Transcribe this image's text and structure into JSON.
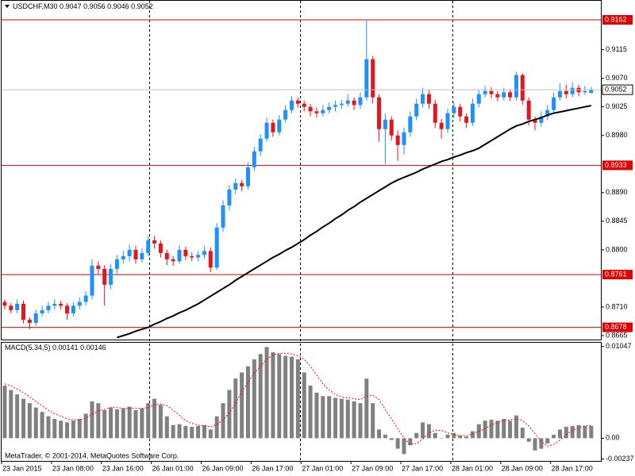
{
  "chart_data": [
    {
      "type": "candlestick",
      "title": "USDCHF,M30",
      "categories": [
        "23 Jan 2015",
        null,
        null,
        null,
        null,
        null,
        null,
        null,
        "23 Jan 08:00",
        null,
        null,
        null,
        null,
        null,
        null,
        null,
        "23 Jan 16:00",
        null,
        null,
        null,
        null,
        null,
        null,
        null,
        "26 Jan 01:00",
        null,
        null,
        null,
        null,
        null,
        null,
        null,
        "26 Jan 09:00",
        null,
        null,
        null,
        null,
        null,
        null,
        null,
        "26 Jan 17:00",
        null,
        null,
        null,
        null,
        null,
        null,
        null,
        "27 Jan 01:00",
        null,
        null,
        null,
        null,
        null,
        null,
        null,
        "27 Jan 09:00",
        null,
        null,
        null,
        null,
        null,
        null,
        null,
        "27 Jan 17:00",
        null,
        null,
        null,
        null,
        null,
        null,
        null,
        "28 Jan 01:00",
        null,
        null,
        null,
        null,
        null,
        null,
        null,
        "28 Jan 09:00",
        null,
        null,
        null,
        null,
        null,
        null,
        null,
        "28 Jan 17:00",
        null,
        null,
        null,
        null,
        null,
        null
      ],
      "candles": [
        [
          0.8718,
          0.8722,
          0.8706,
          0.8712
        ],
        [
          0.8712,
          0.8716,
          0.87,
          0.8705
        ],
        [
          0.8705,
          0.8722,
          0.87,
          0.8715
        ],
        [
          0.8715,
          0.872,
          0.8684,
          0.869
        ],
        [
          0.869,
          0.8694,
          0.8675,
          0.8685
        ],
        [
          0.8685,
          0.8706,
          0.868,
          0.87
        ],
        [
          0.87,
          0.8712,
          0.8695,
          0.8705
        ],
        [
          0.8705,
          0.8718,
          0.87,
          0.8712
        ],
        [
          0.8712,
          0.8722,
          0.8706,
          0.8715
        ],
        [
          0.8715,
          0.872,
          0.8706,
          0.8712
        ],
        [
          0.8712,
          0.8716,
          0.869,
          0.87
        ],
        [
          0.87,
          0.8718,
          0.8695,
          0.8712
        ],
        [
          0.8712,
          0.8725,
          0.8706,
          0.8718
        ],
        [
          0.8718,
          0.8735,
          0.8712,
          0.8728
        ],
        [
          0.8728,
          0.8785,
          0.8722,
          0.8775
        ],
        [
          0.8775,
          0.8782,
          0.8762,
          0.877
        ],
        [
          0.877,
          0.8776,
          0.8712,
          0.8745
        ],
        [
          0.8745,
          0.8778,
          0.8738,
          0.877
        ],
        [
          0.877,
          0.8792,
          0.8762,
          0.8785
        ],
        [
          0.8785,
          0.8798,
          0.8778,
          0.879
        ],
        [
          0.879,
          0.8808,
          0.8782,
          0.88
        ],
        [
          0.88,
          0.8806,
          0.8778,
          0.8785
        ],
        [
          0.8785,
          0.8802,
          0.878,
          0.8795
        ],
        [
          0.8795,
          0.8822,
          0.879,
          0.8815
        ],
        [
          0.8815,
          0.8822,
          0.8802,
          0.881
        ],
        [
          0.881,
          0.8815,
          0.8788,
          0.8795
        ],
        [
          0.8795,
          0.88,
          0.8776,
          0.8785
        ],
        [
          0.8785,
          0.879,
          0.8775,
          0.8782
        ],
        [
          0.8782,
          0.8808,
          0.8778,
          0.88
        ],
        [
          0.88,
          0.8805,
          0.8784,
          0.879
        ],
        [
          0.879,
          0.8796,
          0.8782,
          0.8788
        ],
        [
          0.8788,
          0.8798,
          0.8782,
          0.8792
        ],
        [
          0.8792,
          0.8806,
          0.8786,
          0.8798
        ],
        [
          0.8798,
          0.8804,
          0.8765,
          0.8772
        ],
        [
          0.8772,
          0.8842,
          0.8768,
          0.8835
        ],
        [
          0.8835,
          0.8878,
          0.8828,
          0.887
        ],
        [
          0.887,
          0.8902,
          0.8862,
          0.8895
        ],
        [
          0.8895,
          0.8912,
          0.8888,
          0.8905
        ],
        [
          0.8905,
          0.891,
          0.8892,
          0.89
        ],
        [
          0.89,
          0.8938,
          0.8895,
          0.893
        ],
        [
          0.893,
          0.8962,
          0.8924,
          0.8955
        ],
        [
          0.8955,
          0.8982,
          0.8948,
          0.8975
        ],
        [
          0.8975,
          0.9008,
          0.897,
          0.9
        ],
        [
          0.9,
          0.9005,
          0.8978,
          0.8985
        ],
        [
          0.8985,
          0.9012,
          0.898,
          0.9005
        ],
        [
          0.9005,
          0.9028,
          0.9,
          0.902
        ],
        [
          0.902,
          0.9042,
          0.9015,
          0.9035
        ],
        [
          0.9035,
          0.904,
          0.9024,
          0.903
        ],
        [
          0.903,
          0.9035,
          0.9018,
          0.9025
        ],
        [
          0.9025,
          0.903,
          0.901,
          0.9018
        ],
        [
          0.9018,
          0.9024,
          0.9008,
          0.9015
        ],
        [
          0.9015,
          0.9028,
          0.901,
          0.902
        ],
        [
          0.902,
          0.9032,
          0.9015,
          0.9025
        ],
        [
          0.9025,
          0.9035,
          0.9018,
          0.9028
        ],
        [
          0.9028,
          0.9036,
          0.9022,
          0.903
        ],
        [
          0.903,
          0.9045,
          0.9025,
          0.9035
        ],
        [
          0.9035,
          0.904,
          0.902,
          0.9028
        ],
        [
          0.9028,
          0.9048,
          0.9022,
          0.904
        ],
        [
          0.904,
          0.9162,
          0.9035,
          0.91
        ],
        [
          0.91,
          0.9105,
          0.903,
          0.904
        ],
        [
          0.904,
          0.9045,
          0.897,
          0.899
        ],
        [
          0.899,
          0.9015,
          0.8935,
          0.9005
        ],
        [
          0.9005,
          0.901,
          0.8972,
          0.898
        ],
        [
          0.898,
          0.8988,
          0.894,
          0.8965
        ],
        [
          0.8965,
          0.8992,
          0.895,
          0.8985
        ],
        [
          0.8985,
          0.9018,
          0.8978,
          0.901
        ],
        [
          0.901,
          0.9038,
          0.9004,
          0.903
        ],
        [
          0.903,
          0.9055,
          0.9024,
          0.9045
        ],
        [
          0.9045,
          0.9052,
          0.9022,
          0.903
        ],
        [
          0.903,
          0.9036,
          0.8992,
          0.9
        ],
        [
          0.9,
          0.9006,
          0.8975,
          0.899
        ],
        [
          0.899,
          0.9022,
          0.8984,
          0.9015
        ],
        [
          0.9015,
          0.9032,
          0.9008,
          0.9025
        ],
        [
          0.9025,
          0.903,
          0.9002,
          0.901
        ],
        [
          0.901,
          0.9015,
          0.8992,
          0.9
        ],
        [
          0.9,
          0.9038,
          0.8995,
          0.903
        ],
        [
          0.903,
          0.9052,
          0.9024,
          0.9045
        ],
        [
          0.9045,
          0.9058,
          0.904,
          0.905
        ],
        [
          0.905,
          0.9056,
          0.9038,
          0.9045
        ],
        [
          0.9045,
          0.905,
          0.9034,
          0.904
        ],
        [
          0.904,
          0.9055,
          0.9035,
          0.9048
        ],
        [
          0.9048,
          0.9052,
          0.9034,
          0.904
        ],
        [
          0.904,
          0.908,
          0.9035,
          0.9075
        ],
        [
          0.9075,
          0.9078,
          0.9028,
          0.9035
        ],
        [
          0.9035,
          0.904,
          0.8996,
          0.9005
        ],
        [
          0.9005,
          0.901,
          0.8988,
          0.9
        ],
        [
          0.9,
          0.9018,
          0.8994,
          0.901
        ],
        [
          0.901,
          0.9028,
          0.9004,
          0.902
        ],
        [
          0.902,
          0.9048,
          0.9014,
          0.904
        ],
        [
          0.904,
          0.9062,
          0.9035,
          0.905
        ],
        [
          0.905,
          0.906,
          0.9038,
          0.9045
        ],
        [
          0.9045,
          0.9064,
          0.904,
          0.9055
        ],
        [
          0.9055,
          0.906,
          0.9042,
          0.9048
        ],
        [
          0.9048,
          0.9058,
          0.9044,
          0.905
        ],
        [
          0.9047,
          0.9056,
          0.9046,
          0.9052
        ]
      ],
      "up_color": "#1e90ff",
      "down_color": "#e8141b",
      "ma": {
        "color": "#000000",
        "values": [
          null,
          null,
          null,
          null,
          null,
          null,
          null,
          null,
          null,
          null,
          null,
          null,
          null,
          null,
          null,
          null,
          null,
          null,
          0.8662,
          0.8665,
          0.8668,
          0.8672,
          0.8675,
          0.8678,
          0.8683,
          0.8687,
          0.8692,
          0.8696,
          0.8701,
          0.8705,
          0.871,
          0.8715,
          0.8721,
          0.8727,
          0.8733,
          0.8739,
          0.8745,
          0.8752,
          0.8758,
          0.8764,
          0.877,
          0.8776,
          0.8782,
          0.8788,
          0.8793,
          0.8799,
          0.8804,
          0.881,
          0.8816,
          0.8823,
          0.8829,
          0.8836,
          0.8842,
          0.8849,
          0.8855,
          0.8862,
          0.8868,
          0.8875,
          0.8881,
          0.8887,
          0.8893,
          0.8899,
          0.8905,
          0.891,
          0.8914,
          0.8918,
          0.8922,
          0.8927,
          0.8931,
          0.8935,
          0.8939,
          0.8942,
          0.8946,
          0.8949,
          0.8953,
          0.8956,
          0.896,
          0.8966,
          0.8972,
          0.8978,
          0.8984,
          0.899,
          0.8995,
          0.8998,
          0.9002,
          0.9005,
          0.9008,
          0.9012,
          0.9015,
          0.9017,
          0.9019,
          0.9021,
          0.9023,
          0.9025,
          0.9027
        ]
      },
      "levels": [
        0.9162,
        0.8933,
        0.8761,
        0.8678
      ],
      "level_color": "#e00000",
      "ylim": [
        0.866,
        0.9192
      ],
      "yticks": [
        0.9115,
        {
          "value": 0.907,
          "label": "0.9070"
        },
        0.9025,
        {
          "value": 0.898,
          "label": "0.8980"
        },
        {
          "value": 0.889,
          "label": "0.8890"
        },
        0.8845,
        {
          "value": 0.88,
          "label": "0.8800"
        },
        {
          "value": 0.871,
          "label": "0.8710"
        },
        0.8665
      ]
    },
    {
      "type": "macd",
      "title": "MACD(5,34,5)",
      "color": "#808080",
      "signal_color": "#ff0000",
      "values": [
        0.006,
        0.0055,
        0.005,
        0.0045,
        0.004,
        0.0035,
        0.003,
        0.0025,
        0.0022,
        0.002,
        0.0018,
        0.002,
        0.0022,
        0.0028,
        0.0042,
        0.004,
        0.0032,
        0.0035,
        0.0033,
        0.0034,
        0.0036,
        0.0032,
        0.0034,
        0.004,
        0.0045,
        0.0038,
        0.0025,
        0.0015,
        0.0016,
        0.0014,
        0.0013,
        0.0014,
        0.0015,
        0.001,
        0.0025,
        0.004,
        0.0055,
        0.0068,
        0.0075,
        0.0082,
        0.009,
        0.0096,
        0.0104,
        0.0098,
        0.0096,
        0.0094,
        0.0093,
        0.009,
        0.0075,
        0.006,
        0.0052,
        0.0048,
        0.0048,
        0.0046,
        0.0045,
        0.0044,
        0.0042,
        0.004,
        0.0068,
        0.004,
        0.001,
        0.0004,
        -0.0002,
        -0.0012,
        -0.0018,
        -0.0008,
        0.0006,
        0.0018,
        0.0016,
        0.0006,
        0.0,
        0.0004,
        0.0006,
        0.0003,
        0.0002,
        0.0008,
        0.0016,
        0.002,
        0.0021,
        0.002,
        0.0022,
        0.002,
        0.0026,
        0.0012,
        -0.0004,
        -0.0014,
        -0.0012,
        -0.0006,
        0.0004,
        0.001,
        0.0013,
        0.0014,
        0.0015,
        0.0014,
        0.00141
      ],
      "signal": [
        0.0062,
        0.006,
        0.0056,
        0.0052,
        0.0047,
        0.0042,
        0.0037,
        0.0032,
        0.0028,
        0.0025,
        0.0022,
        0.0021,
        0.0021,
        0.0023,
        0.0027,
        0.0031,
        0.0033,
        0.0035,
        0.0035,
        0.0034,
        0.0034,
        0.0034,
        0.0034,
        0.0035,
        0.0038,
        0.0039,
        0.0037,
        0.0032,
        0.0026,
        0.002,
        0.0017,
        0.0015,
        0.0014,
        0.0013,
        0.0016,
        0.0021,
        0.0029,
        0.004,
        0.0053,
        0.0064,
        0.0074,
        0.0082,
        0.009,
        0.0095,
        0.0097,
        0.0097,
        0.0096,
        0.0094,
        0.009,
        0.0082,
        0.0072,
        0.0062,
        0.0055,
        0.005,
        0.0047,
        0.0046,
        0.0045,
        0.0044,
        0.0048,
        0.0049,
        0.0044,
        0.0033,
        0.0022,
        0.0011,
        0.0,
        -0.0007,
        -0.0006,
        -0.0001,
        0.0006,
        0.0009,
        0.0009,
        0.0006,
        0.0004,
        0.0003,
        0.0003,
        0.0005,
        0.0008,
        0.0011,
        0.0015,
        0.0018,
        0.002,
        0.0021,
        0.0022,
        0.002,
        0.0014,
        0.0005,
        -0.0004,
        -0.0009,
        -0.0007,
        -0.0002,
        0.0004,
        0.0009,
        0.0012,
        0.00142,
        0.00146
      ],
      "ylim": [
        -0.0025,
        0.0108
      ],
      "yticks": [
        0.01047,
        {
          "value": 0,
          "label": "0.00"
        },
        -0.00237
      ]
    }
  ],
  "footer": "MetaTrader, © 2001-2014, MetaQuotes Software Corp."
}
